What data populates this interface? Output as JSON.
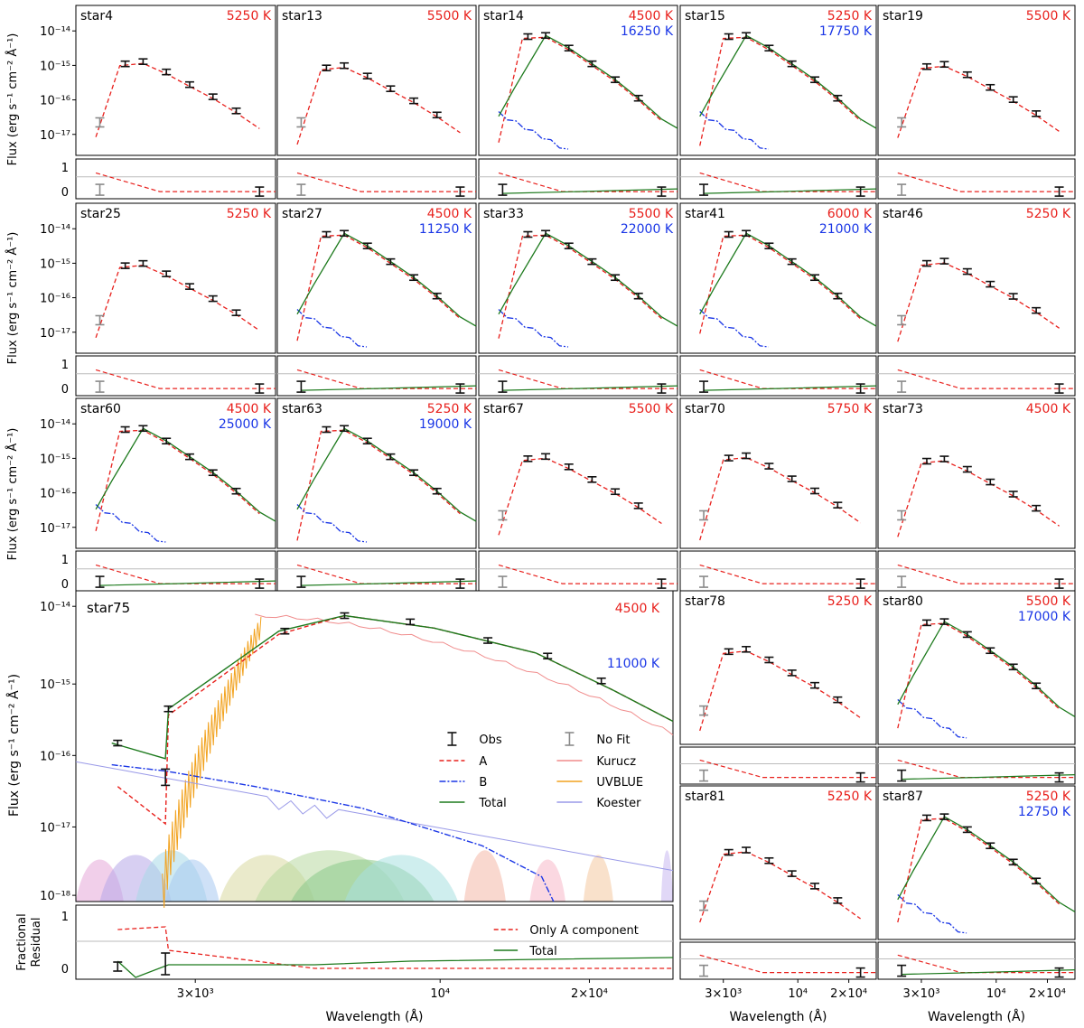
{
  "figure": {
    "flux_label": "Flux (erg s⁻¹ cm⁻² Å⁻¹)",
    "residual_label": [
      "Fractional",
      "Residual"
    ],
    "wavelength_label": "Wavelength (Å)",
    "tick_3e3": "3×10³",
    "tick_1e4": "10⁴",
    "tick_2e4": "2×10⁴",
    "ylog_ticks": [
      "10⁻¹⁴",
      "10⁻¹⁵",
      "10⁻¹⁶",
      "10⁻¹⁷",
      "10⁻¹⁸"
    ],
    "res_ticks": [
      "1",
      "0"
    ]
  },
  "legend": {
    "obs": "Obs",
    "no_fit": "No Fit",
    "a": "A",
    "kurucz": "Kurucz",
    "b": "B",
    "uvblue": "UVBLUE",
    "total": "Total",
    "koester": "Koester",
    "res_a": "Only A component",
    "res_total": "Total"
  },
  "colors": {
    "A": "#e8201c",
    "B": "#1a36e6",
    "Total": "#1d7a1d",
    "Obs": "#111111",
    "NoFit": "#8a8a8a",
    "Kurucz": "#f08c8c",
    "UVBLUE": "#f2a21e",
    "Koester": "#9a9ae8"
  },
  "chart_data": [
    {
      "type": "line",
      "name": "star4",
      "temps": [
        "5250 K"
      ],
      "two": false
    },
    {
      "type": "line",
      "name": "star13",
      "temps": [
        "5500 K"
      ],
      "two": false
    },
    {
      "type": "line",
      "name": "star14",
      "temps": [
        "4500 K",
        "16250 K"
      ],
      "two": true
    },
    {
      "type": "line",
      "name": "star15",
      "temps": [
        "5250 K",
        "17750 K"
      ],
      "two": true
    },
    {
      "type": "line",
      "name": "star19",
      "temps": [
        "5500 K"
      ],
      "two": false
    },
    {
      "type": "line",
      "name": "star25",
      "temps": [
        "5250 K"
      ],
      "two": false
    },
    {
      "type": "line",
      "name": "star27",
      "temps": [
        "4500 K",
        "11250 K"
      ],
      "two": true
    },
    {
      "type": "line",
      "name": "star33",
      "temps": [
        "5500 K",
        "22000 K"
      ],
      "two": true
    },
    {
      "type": "line",
      "name": "star41",
      "temps": [
        "6000 K",
        "21000 K"
      ],
      "two": true
    },
    {
      "type": "line",
      "name": "star46",
      "temps": [
        "5250 K"
      ],
      "two": false
    },
    {
      "type": "line",
      "name": "star60",
      "temps": [
        "4500 K",
        "25000 K"
      ],
      "two": true
    },
    {
      "type": "line",
      "name": "star63",
      "temps": [
        "5250 K",
        "19000 K"
      ],
      "two": true
    },
    {
      "type": "line",
      "name": "star67",
      "temps": [
        "5500 K"
      ],
      "two": false
    },
    {
      "type": "line",
      "name": "star70",
      "temps": [
        "5750 K"
      ],
      "two": false
    },
    {
      "type": "line",
      "name": "star73",
      "temps": [
        "4500 K"
      ],
      "two": false
    },
    {
      "type": "line",
      "name": "star75",
      "temps": [
        "4500 K",
        "11000 K"
      ],
      "two": true
    },
    {
      "type": "line",
      "name": "star78",
      "temps": [
        "5250 K"
      ],
      "two": false
    },
    {
      "type": "line",
      "name": "star80",
      "temps": [
        "5500 K",
        "17000 K"
      ],
      "two": true
    },
    {
      "type": "line",
      "name": "star81",
      "temps": [
        "5250 K"
      ],
      "two": false
    },
    {
      "type": "line",
      "name": "star87",
      "temps": [
        "5250 K",
        "12750 K"
      ],
      "two": true
    }
  ]
}
